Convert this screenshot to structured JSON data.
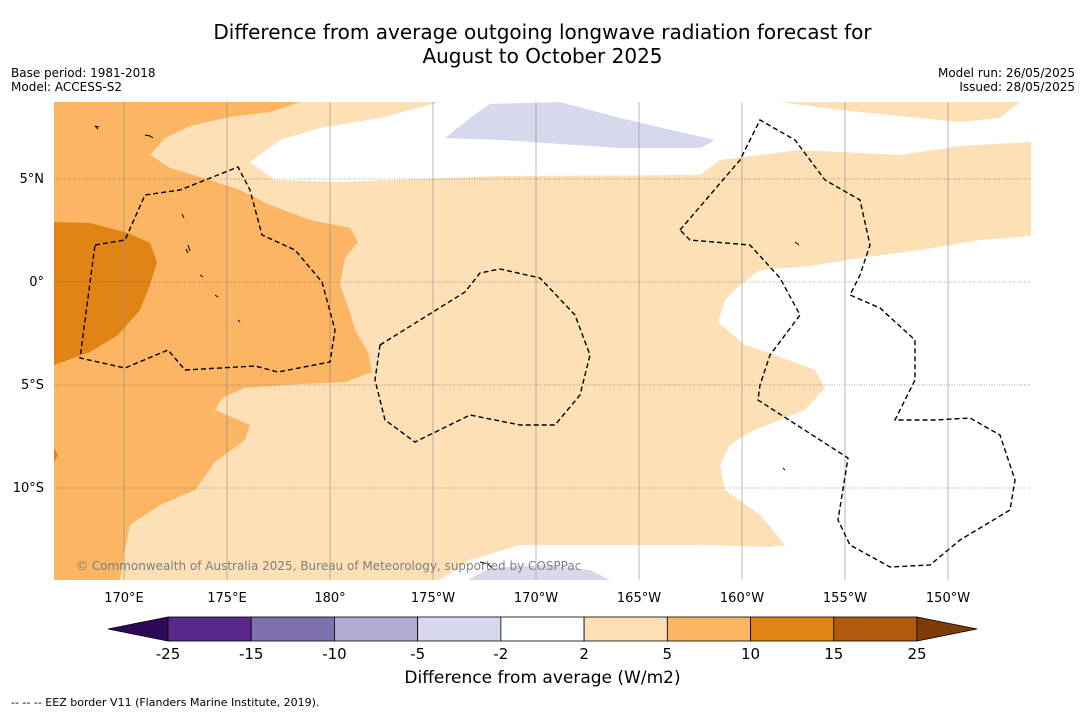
{
  "title": {
    "line1": "Difference from average outgoing longwave radiation forecast for",
    "line2": "August to October 2025"
  },
  "meta": {
    "base_period": "Base period: 1981-2018",
    "model": "Model: ACCESS-S2",
    "model_run": "Model run: 26/05/2025",
    "issued": "Issued: 28/05/2025"
  },
  "map": {
    "lon_labels": [
      "170°E",
      "175°E",
      "180°",
      "175°W",
      "170°W",
      "165°W",
      "160°W",
      "155°W",
      "150°W"
    ],
    "lat_labels": [
      "5°N",
      "0°",
      "5°S",
      "10°S"
    ],
    "copyright": "© Commonwealth of Australia 2025, Bureau of Meteorology, supported by COSPPac",
    "ocean_color": "#ffffff"
  },
  "colorbar": {
    "title": "Difference from average (W/m2)",
    "ticks": [
      "-25",
      "-15",
      "-10",
      "-5",
      "-2",
      "2",
      "5",
      "10",
      "15",
      "25"
    ],
    "colors": [
      "#2d0a55",
      "#56298b",
      "#7e71ac",
      "#b1acd2",
      "#d8d8ec",
      "#ffffff",
      "#fde0b5",
      "#fbb563",
      "#e08416",
      "#b15a0e",
      "#7f3c07"
    ]
  },
  "footnote": "--  --  -- EEZ border V11 (Flanders Marine Institute, 2019)."
}
